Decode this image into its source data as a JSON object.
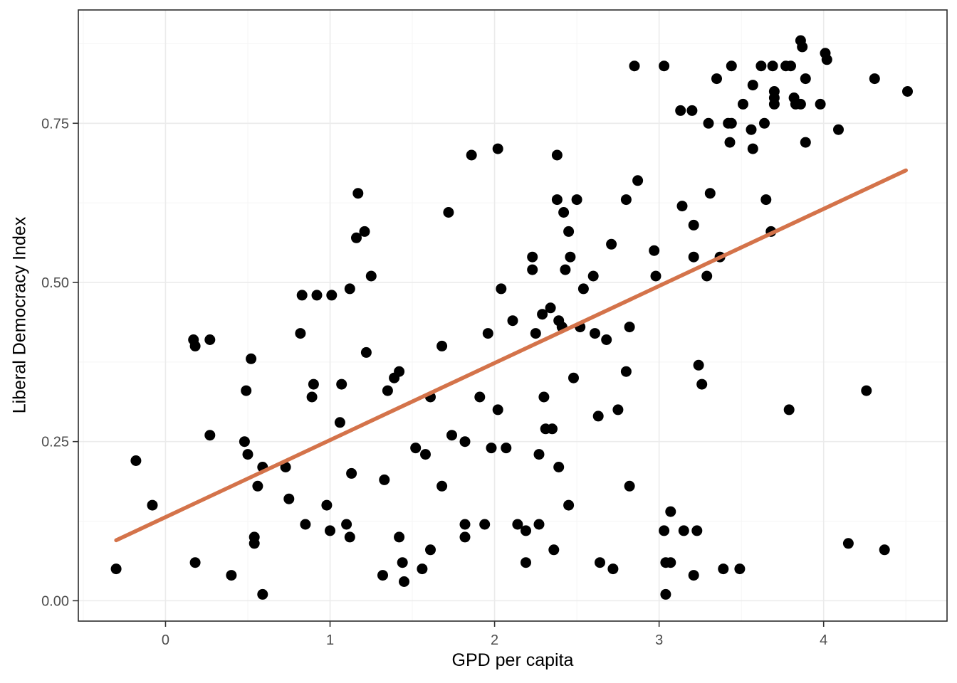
{
  "chart_data": {
    "type": "scatter",
    "title": "",
    "xlabel": "GPD per capita",
    "ylabel": "Liberal Democracy Index",
    "x_ticks": [
      0,
      1,
      2,
      3,
      4
    ],
    "x_tick_labels": [
      "0",
      "1",
      "2",
      "3",
      "4"
    ],
    "y_ticks": [
      0,
      0.25,
      0.5,
      0.75
    ],
    "y_tick_labels": [
      "0.00",
      "0.25",
      "0.50",
      "0.75"
    ],
    "x_minor_ticks": [
      -0.5,
      0.5,
      1.5,
      2.5,
      3.5,
      4.5
    ],
    "y_minor_ticks": [
      0.125,
      0.375,
      0.625,
      0.875
    ],
    "xlim": [
      -0.53,
      4.75
    ],
    "ylim": [
      -0.032,
      0.928
    ],
    "grid": true,
    "legend_position": "none",
    "trend_line": {
      "x1": -0.3,
      "y1": 0.095,
      "x2": 4.5,
      "y2": 0.676
    },
    "colors": {
      "point": "#000000",
      "trend": "#D4734A",
      "grid_major": "#EBEBEB",
      "grid_minor": "#F5F5F5",
      "panel_border": "#2B2B2B",
      "tick_mark": "#333333",
      "tick_text": "#4D4D4D",
      "axis_title": "#000000",
      "background": "#FFFFFF"
    },
    "points": [
      [
        1.86,
        0.7
      ],
      [
        2.02,
        0.71
      ],
      [
        1.17,
        0.64
      ],
      [
        1.72,
        0.61
      ],
      [
        2.85,
        0.84
      ],
      [
        3.03,
        0.84
      ],
      [
        3.44,
        0.84
      ],
      [
        3.35,
        0.82
      ],
      [
        3.13,
        0.77
      ],
      [
        3.2,
        0.77
      ],
      [
        3.3,
        0.75
      ],
      [
        3.42,
        0.75
      ],
      [
        3.44,
        0.75
      ],
      [
        3.43,
        0.72
      ],
      [
        2.38,
        0.7
      ],
      [
        2.87,
        0.66
      ],
      [
        3.31,
        0.64
      ],
      [
        2.38,
        0.63
      ],
      [
        2.5,
        0.63
      ],
      [
        2.8,
        0.63
      ],
      [
        3.14,
        0.62
      ],
      [
        3.86,
        0.88
      ],
      [
        3.87,
        0.87
      ],
      [
        4.01,
        0.86
      ],
      [
        4.02,
        0.85
      ],
      [
        3.62,
        0.84
      ],
      [
        3.69,
        0.84
      ],
      [
        3.77,
        0.84
      ],
      [
        3.8,
        0.84
      ],
      [
        3.89,
        0.82
      ],
      [
        4.31,
        0.82
      ],
      [
        3.57,
        0.81
      ],
      [
        4.51,
        0.8
      ],
      [
        3.7,
        0.8
      ],
      [
        3.7,
        0.79
      ],
      [
        3.7,
        0.78
      ],
      [
        3.82,
        0.79
      ],
      [
        3.83,
        0.78
      ],
      [
        3.86,
        0.78
      ],
      [
        3.98,
        0.78
      ],
      [
        3.51,
        0.78
      ],
      [
        3.64,
        0.75
      ],
      [
        3.56,
        0.74
      ],
      [
        4.09,
        0.74
      ],
      [
        3.89,
        0.72
      ],
      [
        3.57,
        0.71
      ],
      [
        3.65,
        0.63
      ],
      [
        0.17,
        0.41
      ],
      [
        0.27,
        0.41
      ],
      [
        0.18,
        0.4
      ],
      [
        0.52,
        0.38
      ],
      [
        0.49,
        0.33
      ],
      [
        1.21,
        0.58
      ],
      [
        1.16,
        0.57
      ],
      [
        1.25,
        0.51
      ],
      [
        1.12,
        0.49
      ],
      [
        0.83,
        0.48
      ],
      [
        0.92,
        0.48
      ],
      [
        1.01,
        0.48
      ],
      [
        2.04,
        0.49
      ],
      [
        2.11,
        0.44
      ],
      [
        1.96,
        0.42
      ],
      [
        0.82,
        0.42
      ],
      [
        1.68,
        0.4
      ],
      [
        1.22,
        0.39
      ],
      [
        1.42,
        0.36
      ],
      [
        1.39,
        0.35
      ],
      [
        1.07,
        0.34
      ],
      [
        0.9,
        0.34
      ],
      [
        1.35,
        0.33
      ],
      [
        0.89,
        0.32
      ],
      [
        1.61,
        0.32
      ],
      [
        1.91,
        0.32
      ],
      [
        2.02,
        0.3
      ],
      [
        2.42,
        0.61
      ],
      [
        2.45,
        0.58
      ],
      [
        3.21,
        0.59
      ],
      [
        2.71,
        0.56
      ],
      [
        2.97,
        0.55
      ],
      [
        2.23,
        0.54
      ],
      [
        2.46,
        0.54
      ],
      [
        3.21,
        0.54
      ],
      [
        3.37,
        0.54
      ],
      [
        2.43,
        0.52
      ],
      [
        2.23,
        0.52
      ],
      [
        2.98,
        0.51
      ],
      [
        3.29,
        0.51
      ],
      [
        2.6,
        0.51
      ],
      [
        2.54,
        0.49
      ],
      [
        2.34,
        0.46
      ],
      [
        2.29,
        0.45
      ],
      [
        2.39,
        0.44
      ],
      [
        2.41,
        0.43
      ],
      [
        2.52,
        0.43
      ],
      [
        2.25,
        0.42
      ],
      [
        2.82,
        0.43
      ],
      [
        2.61,
        0.42
      ],
      [
        2.68,
        0.41
      ],
      [
        3.24,
        0.37
      ],
      [
        2.8,
        0.36
      ],
      [
        2.48,
        0.35
      ],
      [
        3.26,
        0.34
      ],
      [
        2.3,
        0.32
      ],
      [
        2.75,
        0.3
      ],
      [
        2.63,
        0.29
      ],
      [
        3.68,
        0.58
      ],
      [
        4.26,
        0.33
      ],
      [
        3.79,
        0.3
      ],
      [
        0.27,
        0.26
      ],
      [
        0.48,
        0.25
      ],
      [
        -0.18,
        0.22
      ],
      [
        0.5,
        0.23
      ],
      [
        0.59,
        0.21
      ],
      [
        0.73,
        0.21
      ],
      [
        0.56,
        0.18
      ],
      [
        0.75,
        0.16
      ],
      [
        -0.08,
        0.15
      ],
      [
        0.54,
        0.1
      ],
      [
        0.54,
        0.09
      ],
      [
        -0.3,
        0.05
      ],
      [
        0.18,
        0.06
      ],
      [
        0.4,
        0.04
      ],
      [
        0.59,
        0.01
      ],
      [
        1.06,
        0.28
      ],
      [
        1.74,
        0.26
      ],
      [
        1.82,
        0.25
      ],
      [
        1.52,
        0.24
      ],
      [
        1.58,
        0.23
      ],
      [
        1.98,
        0.24
      ],
      [
        2.07,
        0.24
      ],
      [
        1.13,
        0.2
      ],
      [
        1.33,
        0.19
      ],
      [
        1.68,
        0.18
      ],
      [
        0.98,
        0.15
      ],
      [
        0.85,
        0.12
      ],
      [
        1.0,
        0.11
      ],
      [
        1.1,
        0.12
      ],
      [
        1.82,
        0.12
      ],
      [
        1.94,
        0.12
      ],
      [
        1.82,
        0.1
      ],
      [
        1.12,
        0.1
      ],
      [
        1.42,
        0.1
      ],
      [
        1.61,
        0.08
      ],
      [
        1.44,
        0.06
      ],
      [
        1.56,
        0.05
      ],
      [
        1.32,
        0.04
      ],
      [
        1.45,
        0.03
      ],
      [
        2.31,
        0.27
      ],
      [
        2.35,
        0.27
      ],
      [
        2.27,
        0.23
      ],
      [
        2.39,
        0.21
      ],
      [
        2.82,
        0.18
      ],
      [
        2.45,
        0.15
      ],
      [
        3.07,
        0.14
      ],
      [
        2.27,
        0.12
      ],
      [
        2.14,
        0.12
      ],
      [
        2.19,
        0.11
      ],
      [
        3.03,
        0.11
      ],
      [
        3.15,
        0.11
      ],
      [
        3.23,
        0.11
      ],
      [
        2.36,
        0.08
      ],
      [
        2.64,
        0.06
      ],
      [
        2.19,
        0.06
      ],
      [
        2.72,
        0.05
      ],
      [
        3.04,
        0.06
      ],
      [
        3.07,
        0.06
      ],
      [
        3.39,
        0.05
      ],
      [
        3.21,
        0.04
      ],
      [
        3.04,
        0.01
      ],
      [
        3.49,
        0.05
      ],
      [
        4.15,
        0.09
      ],
      [
        4.37,
        0.08
      ]
    ]
  }
}
